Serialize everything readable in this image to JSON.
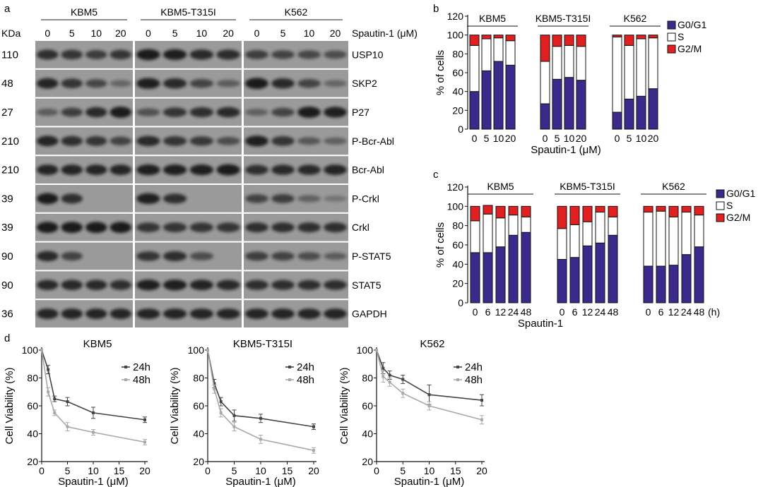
{
  "panel_labels": {
    "a": "a",
    "b": "b",
    "c": "c",
    "d": "d"
  },
  "blot": {
    "kda_header": "KDa",
    "conc_label": "Spautin-1 (μM)",
    "groups": [
      {
        "name": "KBM5",
        "concs": [
          "0",
          "5",
          "10",
          "20"
        ]
      },
      {
        "name": "KBM5-T315I",
        "concs": [
          "0",
          "5",
          "10",
          "20"
        ]
      },
      {
        "name": "K562",
        "concs": [
          "0",
          "5",
          "10",
          "20"
        ]
      }
    ],
    "rows": [
      {
        "kda": "110",
        "protein": "USP10",
        "intensity": [
          [
            0.75,
            0.7,
            0.62,
            0.7
          ],
          [
            0.95,
            0.9,
            0.8,
            0.78
          ],
          [
            0.6,
            0.55,
            0.5,
            0.45
          ]
        ]
      },
      {
        "kda": "48",
        "protein": "SKP2",
        "intensity": [
          [
            0.85,
            0.7,
            0.5,
            0.2
          ],
          [
            0.9,
            0.8,
            0.55,
            0.3
          ],
          [
            0.95,
            0.8,
            0.55,
            0.2
          ]
        ]
      },
      {
        "kda": "27",
        "protein": "P27",
        "intensity": [
          [
            0.3,
            0.6,
            0.8,
            0.95
          ],
          [
            0.4,
            0.7,
            0.75,
            0.8
          ],
          [
            0.25,
            0.55,
            0.95,
            0.9
          ]
        ]
      },
      {
        "kda": "210",
        "protein": "P-Bcr-Abl",
        "intensity": [
          [
            0.85,
            0.75,
            0.7,
            0.55
          ],
          [
            0.8,
            0.7,
            0.65,
            0.45
          ],
          [
            0.9,
            0.7,
            0.35,
            0.25
          ]
        ]
      },
      {
        "kda": "210",
        "protein": "Bcr-Abl",
        "intensity": [
          [
            0.85,
            0.85,
            0.85,
            0.85
          ],
          [
            0.9,
            0.9,
            0.9,
            0.95
          ],
          [
            0.75,
            0.8,
            0.8,
            0.85
          ]
        ]
      },
      {
        "kda": "39",
        "protein": "P-Crkl",
        "intensity": [
          [
            0.95,
            0.75,
            0.0,
            0.0
          ],
          [
            0.9,
            0.75,
            0.0,
            0.0
          ],
          [
            0.55,
            0.6,
            0.25,
            0.05
          ]
        ]
      },
      {
        "kda": "39",
        "protein": "Crkl",
        "intensity": [
          [
            0.95,
            0.95,
            0.95,
            0.95
          ],
          [
            0.7,
            0.7,
            0.7,
            0.7
          ],
          [
            0.75,
            0.75,
            0.75,
            0.75
          ]
        ]
      },
      {
        "kda": "90",
        "protein": "P-STAT5",
        "intensity": [
          [
            0.8,
            0.55,
            0.0,
            0.0
          ],
          [
            0.7,
            0.75,
            0.45,
            0.0
          ],
          [
            0.6,
            0.55,
            0.45,
            0.3
          ]
        ]
      },
      {
        "kda": "90",
        "protein": "STAT5",
        "intensity": [
          [
            0.8,
            0.8,
            0.8,
            0.75
          ],
          [
            0.9,
            0.9,
            0.85,
            0.8
          ],
          [
            0.75,
            0.75,
            0.75,
            0.75
          ]
        ]
      },
      {
        "kda": "36",
        "protein": "GAPDH",
        "intensity": [
          [
            0.85,
            0.85,
            0.85,
            0.85
          ],
          [
            0.85,
            0.85,
            0.85,
            0.85
          ],
          [
            0.85,
            0.85,
            0.85,
            0.85
          ]
        ]
      }
    ]
  },
  "colors": {
    "g0g1": "#3b2a8c",
    "s": "#ffffff",
    "g2m": "#e02020",
    "line24": "#444444",
    "line48": "#a8a8a8",
    "blot_bg": "#9a9a9a",
    "band": "#141414"
  },
  "chart_data": [
    {
      "id": "b",
      "type": "bar",
      "stacked": true,
      "ylabel": "% of cells",
      "ylim": [
        0,
        120
      ],
      "yticks": [
        "0",
        "20",
        "40",
        "60",
        "80",
        "100",
        "120"
      ],
      "xlabel": "Spautin-1 (μM)",
      "unit_label": "",
      "groups": [
        "KBM5",
        "KBM5-T315I",
        "K562"
      ],
      "categories": [
        "0",
        "5",
        "10",
        "20"
      ],
      "legend": [
        "G0/G1",
        "S",
        "G2/M"
      ],
      "series": [
        {
          "name": "G0/G1",
          "values": [
            [
              40,
              62,
              72,
              68
            ],
            [
              27,
              53,
              55,
              52
            ],
            [
              18,
              32,
              35,
              43
            ]
          ]
        },
        {
          "name": "S",
          "values": [
            [
              49,
              34,
              25,
              26
            ],
            [
              45,
              35,
              34,
              36
            ],
            [
              80,
              57,
              61,
              54
            ]
          ]
        },
        {
          "name": "G2/M",
          "values": [
            [
              11,
              4,
              3,
              6
            ],
            [
              28,
              12,
              11,
              12
            ],
            [
              2,
              11,
              4,
              3
            ]
          ]
        }
      ]
    },
    {
      "id": "c",
      "type": "bar",
      "stacked": true,
      "ylabel": "% of cells",
      "ylim": [
        0,
        120
      ],
      "yticks": [
        "0",
        "20",
        "40",
        "60",
        "80",
        "100",
        "120"
      ],
      "xlabel": "Spautin-1",
      "unit_label": "(h)",
      "groups": [
        "KBM5",
        "KBM5-T315I",
        "K562"
      ],
      "categories": [
        "0",
        "6",
        "12",
        "24",
        "48"
      ],
      "legend": [
        "G0/G1",
        "S",
        "G2/M"
      ],
      "series": [
        {
          "name": "G0/G1",
          "values": [
            [
              52,
              52,
              58,
              70,
              73
            ],
            [
              45,
              47,
              59,
              62,
              70
            ],
            [
              38,
              38,
              39,
              50,
              58
            ]
          ]
        },
        {
          "name": "S",
          "values": [
            [
              33,
              40,
              30,
              21,
              16
            ],
            [
              32,
              34,
              25,
              32,
              19
            ],
            [
              56,
              57,
              50,
              44,
              33
            ]
          ]
        },
        {
          "name": "G2/M",
          "values": [
            [
              15,
              9,
              12,
              9,
              11
            ],
            [
              23,
              19,
              16,
              6,
              11
            ],
            [
              6,
              5,
              11,
              6,
              9
            ]
          ]
        }
      ]
    },
    {
      "id": "d1",
      "type": "line",
      "title": "KBM5",
      "xlabel": "Spautin-1 (μM)",
      "ylabel": "Cell Viability (%)",
      "xlim": [
        0,
        20
      ],
      "ylim": [
        20,
        100
      ],
      "xticks": [
        "0",
        "5",
        "10",
        "15",
        "20"
      ],
      "yticks": [
        "20",
        "40",
        "60",
        "80",
        "100"
      ],
      "x": [
        0,
        1.25,
        2.5,
        5,
        10,
        20
      ],
      "series": [
        {
          "name": "24h",
          "values": [
            100,
            86,
            65,
            63,
            55,
            50
          ],
          "err": [
            0,
            3,
            2,
            3,
            4,
            2
          ]
        },
        {
          "name": "48h",
          "values": [
            100,
            70,
            55,
            45,
            41,
            34
          ],
          "err": [
            0,
            3,
            2,
            3,
            2,
            2
          ]
        }
      ]
    },
    {
      "id": "d2",
      "type": "line",
      "title": "KBM5-T315I",
      "xlabel": "Spautin-1 (μM)",
      "ylabel": "Cell Viability (%)",
      "xlim": [
        0,
        20
      ],
      "ylim": [
        20,
        100
      ],
      "xticks": [
        "0",
        "5",
        "10",
        "15",
        "20"
      ],
      "yticks": [
        "20",
        "40",
        "60",
        "80",
        "100"
      ],
      "x": [
        0,
        1.25,
        2.5,
        5,
        10,
        20
      ],
      "series": [
        {
          "name": "24h",
          "values": [
            100,
            76,
            63,
            53,
            51,
            45
          ],
          "err": [
            0,
            3,
            3,
            4,
            3,
            2
          ]
        },
        {
          "name": "48h",
          "values": [
            100,
            72,
            55,
            45,
            36,
            28
          ],
          "err": [
            0,
            3,
            3,
            3,
            3,
            2
          ]
        }
      ]
    },
    {
      "id": "d3",
      "type": "line",
      "title": "K562",
      "xlabel": "Spautin-1 (μM)",
      "ylabel": "Cell Viability (%)",
      "xlim": [
        0,
        20
      ],
      "ylim": [
        20,
        100
      ],
      "xticks": [
        "0",
        "5",
        "10",
        "15",
        "20"
      ],
      "yticks": [
        "20",
        "40",
        "60",
        "80",
        "100"
      ],
      "x": [
        0,
        1.25,
        2.5,
        5,
        10,
        20
      ],
      "series": [
        {
          "name": "24h",
          "values": [
            100,
            87,
            82,
            79,
            68,
            64
          ],
          "err": [
            0,
            4,
            3,
            3,
            7,
            4
          ]
        },
        {
          "name": "48h",
          "values": [
            100,
            81,
            77,
            69,
            60,
            50
          ],
          "err": [
            0,
            4,
            3,
            3,
            3,
            3
          ]
        }
      ]
    }
  ]
}
